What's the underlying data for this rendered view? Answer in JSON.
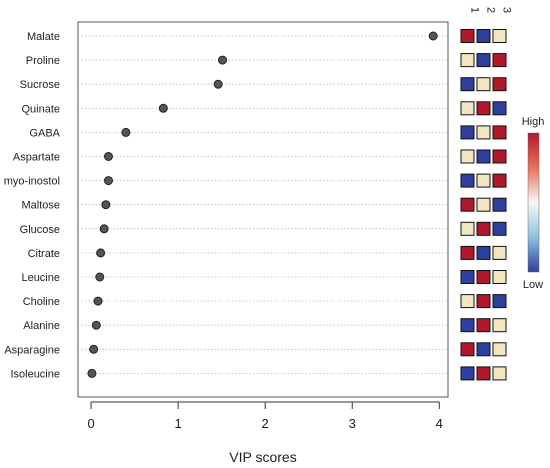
{
  "chart_data": {
    "type": "scatter",
    "title": "",
    "xlabel": "VIP scores",
    "ylabel": "",
    "xlim": [
      -0.15,
      4.1
    ],
    "xticks": [
      "0",
      "1",
      "2",
      "3",
      "4"
    ],
    "grid": "horizontal dotted lines",
    "categories": [
      "Malate",
      "Proline",
      "Sucrose",
      "Quinate",
      "GABA",
      "Aspartate",
      "myo-inostol",
      "Maltose",
      "Glucose",
      "Citrate",
      "Leucine",
      "Choline",
      "Alanine",
      "Asparagine",
      "Isoleucine"
    ],
    "values": [
      3.93,
      1.51,
      1.46,
      0.83,
      0.4,
      0.2,
      0.2,
      0.17,
      0.15,
      0.11,
      0.1,
      0.08,
      0.06,
      0.03,
      0.01
    ],
    "heatmap": {
      "columns": [
        "1",
        "2",
        "3"
      ],
      "levels": [
        [
          "high",
          "low",
          "mid"
        ],
        [
          "mid",
          "low",
          "high"
        ],
        [
          "low",
          "mid",
          "high"
        ],
        [
          "mid",
          "high",
          "low"
        ],
        [
          "low",
          "mid",
          "high"
        ],
        [
          "mid",
          "low",
          "high"
        ],
        [
          "low",
          "mid",
          "high"
        ],
        [
          "high",
          "mid",
          "low"
        ],
        [
          "mid",
          "high",
          "low"
        ],
        [
          "high",
          "low",
          "mid"
        ],
        [
          "low",
          "high",
          "mid"
        ],
        [
          "mid",
          "high",
          "low"
        ],
        [
          "low",
          "high",
          "mid"
        ],
        [
          "high",
          "low",
          "mid"
        ],
        [
          "low",
          "high",
          "mid"
        ]
      ],
      "colors": {
        "high": "#b2182b",
        "mid": "#f2e6c2",
        "low": "#2e3f9e"
      }
    },
    "legend": {
      "high_label": "High",
      "low_label": "Low",
      "placement": "right",
      "gradient": [
        "#b2182b",
        "#e8705a",
        "#f7f7f7",
        "#8fc1de",
        "#2e3f9e"
      ]
    }
  },
  "colors": {
    "point_fill": "#555555",
    "point_stroke": "#222222",
    "grid": "#b8b8b8",
    "frame": "#555555"
  }
}
